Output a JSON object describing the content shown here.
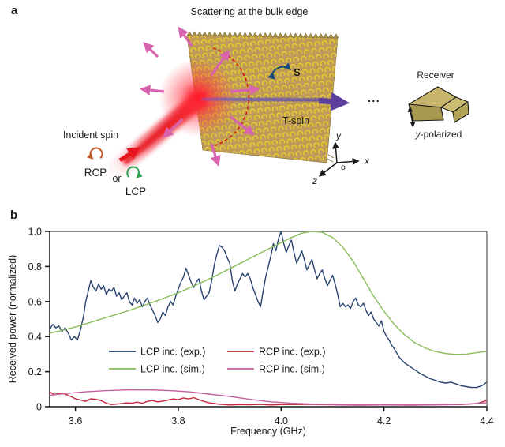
{
  "figure": {
    "panel_a": {
      "label": "a",
      "title": "Scattering at the bulk edge",
      "labels": {
        "incident_spin": "Incident spin",
        "rcp": "RCP",
        "or": "or",
        "lcp": "LCP",
        "t_spin": "T-spin",
        "spin_s": "S",
        "dots": "...",
        "receiver": "Receiver",
        "y_pol_prefix": "y",
        "y_pol_suffix": "-polarized",
        "axis_x": "x",
        "axis_y": "y",
        "axis_z": "z",
        "origin": "o"
      },
      "colors": {
        "slab_tan": "#c09a58",
        "ring_yellow": "#e7d625",
        "beam_red": "#e8141f",
        "scatter_pink": "#d863ae",
        "t_spin_purple": "#5c3f9e",
        "spin_s_blue": "#1a4a7c",
        "rcp_orange": "#c05a2c",
        "lcp_green": "#2fa353",
        "receiver_khaki": "#b5a55c",
        "dashed_arc_red": "#d21717"
      }
    },
    "panel_b": {
      "label": "b"
    }
  },
  "chart_data": {
    "type": "line",
    "title": "",
    "xlabel": "Frequency (GHz)",
    "ylabel": "Received power (normalized)",
    "xlim": [
      3.55,
      4.4
    ],
    "ylim": [
      0,
      1.0
    ],
    "xticks": [
      3.6,
      3.8,
      4.0,
      4.2,
      4.4
    ],
    "yticks": [
      0,
      0.2,
      0.4,
      0.6,
      0.8,
      1.0
    ],
    "grid": false,
    "legend_position": "inside lower-center, two columns",
    "spine_colors": {
      "left": "#1a1a1a",
      "bottom": "#1a1a1a",
      "top": "#8c8c8c",
      "right": "#8c8c8c"
    },
    "series": [
      {
        "name": "LCP inc. (exp.)",
        "color": "#27436e",
        "x": [
          3.55,
          3.556,
          3.562,
          3.568,
          3.574,
          3.58,
          3.586,
          3.592,
          3.598,
          3.604,
          3.61,
          3.616,
          3.62,
          3.625,
          3.63,
          3.635,
          3.64,
          3.645,
          3.65,
          3.655,
          3.66,
          3.665,
          3.67,
          3.675,
          3.68,
          3.685,
          3.69,
          3.695,
          3.7,
          3.705,
          3.71,
          3.715,
          3.72,
          3.725,
          3.73,
          3.735,
          3.74,
          3.745,
          3.75,
          3.755,
          3.76,
          3.765,
          3.77,
          3.775,
          3.78,
          3.785,
          3.79,
          3.795,
          3.8,
          3.805,
          3.81,
          3.815,
          3.82,
          3.825,
          3.83,
          3.835,
          3.84,
          3.845,
          3.85,
          3.855,
          3.86,
          3.865,
          3.87,
          3.875,
          3.88,
          3.885,
          3.89,
          3.895,
          3.9,
          3.905,
          3.91,
          3.915,
          3.92,
          3.925,
          3.93,
          3.935,
          3.94,
          3.945,
          3.95,
          3.955,
          3.96,
          3.965,
          3.97,
          3.975,
          3.98,
          3.985,
          3.99,
          3.995,
          4.0,
          4.005,
          4.01,
          4.015,
          4.02,
          4.025,
          4.03,
          4.035,
          4.04,
          4.045,
          4.05,
          4.055,
          4.06,
          4.065,
          4.07,
          4.075,
          4.08,
          4.085,
          4.09,
          4.095,
          4.1,
          4.105,
          4.11,
          4.115,
          4.12,
          4.125,
          4.13,
          4.135,
          4.14,
          4.145,
          4.15,
          4.155,
          4.16,
          4.165,
          4.17,
          4.175,
          4.18,
          4.185,
          4.19,
          4.195,
          4.2,
          4.205,
          4.21,
          4.215,
          4.22,
          4.23,
          4.24,
          4.25,
          4.26,
          4.27,
          4.28,
          4.29,
          4.3,
          4.31,
          4.32,
          4.33,
          4.34,
          4.35,
          4.36,
          4.37,
          4.38,
          4.39,
          4.4
        ],
        "y": [
          0.44,
          0.47,
          0.45,
          0.46,
          0.43,
          0.45,
          0.42,
          0.38,
          0.4,
          0.38,
          0.44,
          0.52,
          0.6,
          0.66,
          0.72,
          0.68,
          0.66,
          0.7,
          0.67,
          0.69,
          0.64,
          0.67,
          0.66,
          0.68,
          0.63,
          0.65,
          0.61,
          0.63,
          0.65,
          0.6,
          0.58,
          0.62,
          0.59,
          0.61,
          0.57,
          0.6,
          0.62,
          0.58,
          0.55,
          0.52,
          0.48,
          0.5,
          0.54,
          0.52,
          0.57,
          0.6,
          0.58,
          0.63,
          0.67,
          0.71,
          0.74,
          0.79,
          0.75,
          0.71,
          0.68,
          0.71,
          0.73,
          0.66,
          0.61,
          0.63,
          0.65,
          0.72,
          0.81,
          0.87,
          0.92,
          0.91,
          0.89,
          0.85,
          0.82,
          0.72,
          0.66,
          0.7,
          0.73,
          0.76,
          0.74,
          0.76,
          0.73,
          0.68,
          0.64,
          0.6,
          0.57,
          0.66,
          0.74,
          0.8,
          0.86,
          0.93,
          0.89,
          0.96,
          1.0,
          0.93,
          0.88,
          0.92,
          0.95,
          0.88,
          0.82,
          0.85,
          0.89,
          0.84,
          0.78,
          0.81,
          0.84,
          0.78,
          0.73,
          0.76,
          0.78,
          0.73,
          0.69,
          0.72,
          0.75,
          0.7,
          0.64,
          0.57,
          0.59,
          0.57,
          0.58,
          0.56,
          0.6,
          0.62,
          0.58,
          0.57,
          0.59,
          0.55,
          0.52,
          0.54,
          0.5,
          0.48,
          0.46,
          0.49,
          0.43,
          0.4,
          0.38,
          0.35,
          0.33,
          0.28,
          0.25,
          0.23,
          0.21,
          0.19,
          0.175,
          0.16,
          0.15,
          0.14,
          0.135,
          0.14,
          0.13,
          0.12,
          0.115,
          0.11,
          0.11,
          0.12,
          0.14
        ]
      },
      {
        "name": "LCP inc. (sim.)",
        "color": "#87bc55",
        "x": [
          3.55,
          3.575,
          3.6,
          3.625,
          3.65,
          3.675,
          3.7,
          3.725,
          3.75,
          3.775,
          3.8,
          3.825,
          3.85,
          3.875,
          3.9,
          3.925,
          3.95,
          3.975,
          4.0,
          4.02,
          4.04,
          4.06,
          4.08,
          4.1,
          4.12,
          4.14,
          4.16,
          4.18,
          4.2,
          4.22,
          4.24,
          4.26,
          4.28,
          4.3,
          4.32,
          4.34,
          4.36,
          4.38,
          4.4
        ],
        "y": [
          0.42,
          0.437,
          0.455,
          0.477,
          0.5,
          0.522,
          0.545,
          0.57,
          0.595,
          0.622,
          0.65,
          0.682,
          0.715,
          0.75,
          0.788,
          0.825,
          0.862,
          0.9,
          0.935,
          0.965,
          0.99,
          1.0,
          0.995,
          0.965,
          0.91,
          0.83,
          0.73,
          0.63,
          0.545,
          0.47,
          0.41,
          0.365,
          0.335,
          0.315,
          0.303,
          0.298,
          0.3,
          0.308,
          0.315
        ]
      },
      {
        "name": "RCP inc. (exp.)",
        "color": "#c5293e",
        "x": [
          3.55,
          3.555,
          3.56,
          3.57,
          3.58,
          3.59,
          3.6,
          3.61,
          3.62,
          3.63,
          3.64,
          3.65,
          3.66,
          3.67,
          3.68,
          3.69,
          3.7,
          3.71,
          3.72,
          3.73,
          3.74,
          3.75,
          3.76,
          3.77,
          3.78,
          3.79,
          3.8,
          3.81,
          3.82,
          3.83,
          3.84,
          3.85,
          3.86,
          3.87,
          3.88,
          3.89,
          3.9,
          3.92,
          3.94,
          3.96,
          3.98,
          4.0,
          4.05,
          4.1,
          4.15,
          4.2,
          4.25,
          4.3,
          4.35,
          4.38,
          4.4
        ],
        "y": [
          0.085,
          0.075,
          0.07,
          0.078,
          0.072,
          0.06,
          0.045,
          0.038,
          0.03,
          0.045,
          0.042,
          0.035,
          0.02,
          0.012,
          0.015,
          0.018,
          0.022,
          0.02,
          0.026,
          0.02,
          0.03,
          0.035,
          0.028,
          0.032,
          0.038,
          0.044,
          0.04,
          0.05,
          0.044,
          0.052,
          0.04,
          0.03,
          0.022,
          0.018,
          0.014,
          0.012,
          0.01,
          0.012,
          0.011,
          0.013,
          0.01,
          0.012,
          0.013,
          0.011,
          0.009,
          0.01,
          0.009,
          0.011,
          0.012,
          0.018,
          0.035
        ]
      },
      {
        "name": "RCP inc. (sim.)",
        "color": "#c4609f",
        "x": [
          3.55,
          3.58,
          3.62,
          3.66,
          3.7,
          3.74,
          3.78,
          3.82,
          3.86,
          3.9,
          3.94,
          3.98,
          4.02,
          4.06,
          4.1,
          4.15,
          4.2,
          4.25,
          4.3,
          4.35,
          4.4
        ],
        "y": [
          0.065,
          0.075,
          0.085,
          0.092,
          0.096,
          0.097,
          0.093,
          0.085,
          0.072,
          0.058,
          0.042,
          0.028,
          0.02,
          0.015,
          0.012,
          0.01,
          0.01,
          0.01,
          0.011,
          0.013,
          0.022
        ]
      }
    ]
  }
}
